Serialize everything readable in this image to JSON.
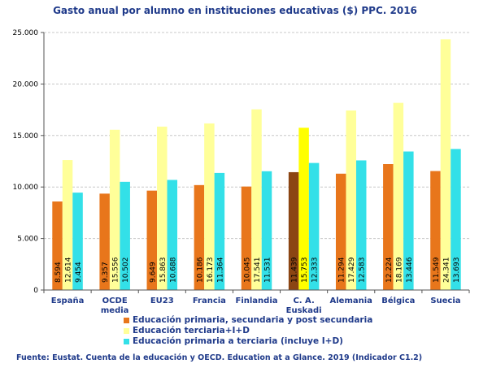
{
  "chart_data": {
    "type": "bar",
    "title": "Gasto anual por alumno en instituciones educativas ($) PPC. 2016",
    "categories": [
      "España",
      "OCDE media",
      "EU23",
      "Francia",
      "Finlandia",
      "C. A. Euskadi",
      "Alemania",
      "Bélgica",
      "Suecia"
    ],
    "category_lines": [
      [
        "España"
      ],
      [
        "OCDE",
        "media"
      ],
      [
        "EU23"
      ],
      [
        "Francia"
      ],
      [
        "Finlandia"
      ],
      [
        "C. A.",
        "Euskadi"
      ],
      [
        "Alemania"
      ],
      [
        "Bélgica"
      ],
      [
        "Suecia"
      ]
    ],
    "series": [
      {
        "name": "Educación primaria, secundaria y post secundaria",
        "values": [
          8594,
          9357,
          9649,
          10186,
          10045,
          11439,
          11294,
          12224,
          11549
        ],
        "labels": [
          "8.594",
          "9.357",
          "9.649",
          "10.186",
          "10.045",
          "11.439",
          "11.294",
          "12.224",
          "11.549"
        ]
      },
      {
        "name": "Educación terciaria+I+D",
        "values": [
          12614,
          15556,
          15863,
          16173,
          17541,
          15753,
          17429,
          18169,
          24341
        ],
        "labels": [
          "12.614",
          "15.556",
          "15.863",
          "16.173",
          "17.541",
          "15.753",
          "17.429",
          "18.169",
          "24.341"
        ]
      },
      {
        "name": "Educación primaria a terciaria (incluye I+D)",
        "values": [
          9454,
          10502,
          10688,
          11364,
          11531,
          12333,
          12583,
          13446,
          13693
        ],
        "labels": [
          "9.454",
          "10.502",
          "10.688",
          "11.364",
          "11.531",
          "12.333",
          "12.583",
          "13.446",
          "13.693"
        ]
      }
    ],
    "series_colors": [
      "#e8761b",
      "#ffff99",
      "#33e0e8"
    ],
    "highlight_category": "C. A. Euskadi",
    "highlight_colors": [
      "#8b4513",
      "#ffff00",
      "#33e0e8"
    ],
    "ylim": [
      0,
      25000
    ],
    "yticks": [
      0,
      5000,
      10000,
      15000,
      20000,
      25000
    ],
    "ytick_labels": [
      "0",
      "5.000",
      "10.000",
      "15.000",
      "20.000",
      "25.000"
    ],
    "grid": true,
    "legend_position": "bottom"
  },
  "source": "Fuente: Eustat. Cuenta de la educación y OECD. Education at a Glance. 2019 (Indicador C1.2)"
}
